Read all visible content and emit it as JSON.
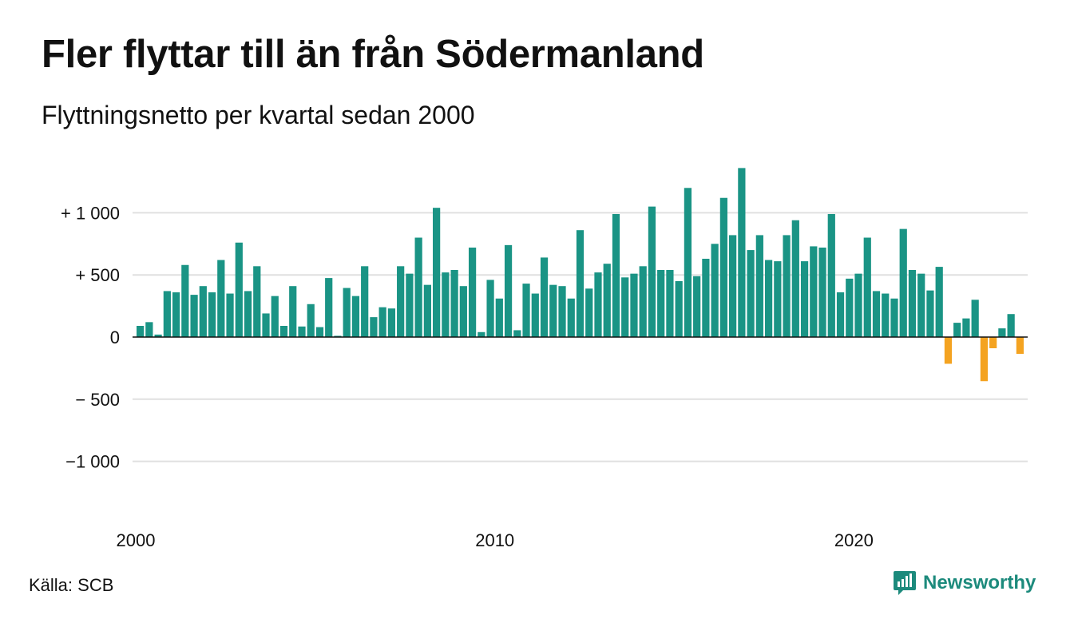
{
  "title": "Fler flyttar till än från Södermanland",
  "subtitle": "Flyttningsnetto per kvartal sedan 2000",
  "source": "Källa: SCB",
  "brand": "Newsworthy",
  "colors": {
    "positive": "#1a9485",
    "negative": "#f4a321",
    "brand": "#1c8a7c",
    "grid": "#e0e0e0"
  },
  "chart_data": {
    "type": "bar",
    "title": "Fler flyttar till än från Södermanland",
    "subtitle": "Flyttningsnetto per kvartal sedan 2000",
    "xlabel": "",
    "ylabel": "",
    "ylim": [
      -1250,
      1400
    ],
    "grid": true,
    "yticks": [
      {
        "value": 1000,
        "label": "+ 1 000"
      },
      {
        "value": 500,
        "label": "+   500"
      },
      {
        "value": 0,
        "label": "0"
      },
      {
        "value": -500,
        "label": "−  500"
      },
      {
        "value": -1000,
        "label": "−1 000"
      }
    ],
    "xticks": [
      {
        "index": 0,
        "label": "2000"
      },
      {
        "index": 40,
        "label": "2010"
      },
      {
        "index": 80,
        "label": "2020"
      }
    ],
    "series": [
      {
        "start": "2000 Q1",
        "frequency": "quarterly",
        "values": [
          90,
          120,
          20,
          370,
          360,
          580,
          340,
          410,
          360,
          620,
          350,
          760,
          370,
          570,
          190,
          330,
          90,
          410,
          85,
          265,
          80,
          475,
          10,
          395,
          330,
          570,
          160,
          240,
          230,
          570,
          510,
          800,
          420,
          1040,
          520,
          540,
          410,
          720,
          40,
          460,
          310,
          740,
          55,
          430,
          350,
          640,
          420,
          410,
          310,
          860,
          390,
          520,
          590,
          990,
          480,
          510,
          570,
          1050,
          540,
          540,
          450,
          1200,
          490,
          630,
          750,
          1120,
          820,
          1360,
          700,
          820,
          620,
          610,
          820,
          940,
          610,
          730,
          720,
          990,
          360,
          470,
          510,
          800,
          370,
          350,
          310,
          870,
          540,
          510,
          375,
          565,
          -215,
          115,
          150,
          300,
          -355,
          -90,
          70,
          185,
          -135
        ]
      }
    ]
  }
}
